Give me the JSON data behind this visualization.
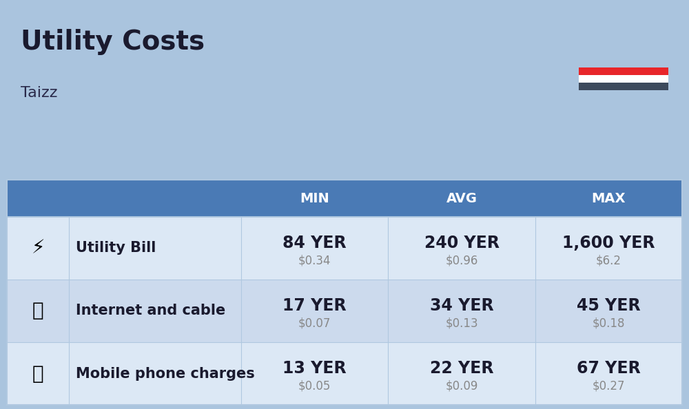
{
  "title": "Utility Costs",
  "subtitle": "Taizz",
  "background_color": "#aac4de",
  "header_bg_color": "#4a7ab5",
  "header_text_color": "#ffffff",
  "row_colors": [
    "#dce8f5",
    "#ccdaed"
  ],
  "col_headers": [
    "MIN",
    "AVG",
    "MAX"
  ],
  "rows": [
    {
      "label": "Utility Bill",
      "min_yer": "84 YER",
      "min_usd": "$0.34",
      "avg_yer": "240 YER",
      "avg_usd": "$0.96",
      "max_yer": "1,600 YER",
      "max_usd": "$6.2"
    },
    {
      "label": "Internet and cable",
      "min_yer": "17 YER",
      "min_usd": "$0.07",
      "avg_yer": "34 YER",
      "avg_usd": "$0.13",
      "max_yer": "45 YER",
      "max_usd": "$0.18"
    },
    {
      "label": "Mobile phone charges",
      "min_yer": "13 YER",
      "min_usd": "$0.05",
      "avg_yer": "22 YER",
      "avg_usd": "$0.09",
      "max_yer": "67 YER",
      "max_usd": "$0.27"
    }
  ],
  "flag_red": "#e8262a",
  "flag_white": "#ffffff",
  "flag_dark": "#3d4a5c",
  "title_fontsize": 28,
  "subtitle_fontsize": 16,
  "header_fontsize": 14,
  "data_yer_fontsize": 17,
  "data_usd_fontsize": 12,
  "label_fontsize": 15
}
